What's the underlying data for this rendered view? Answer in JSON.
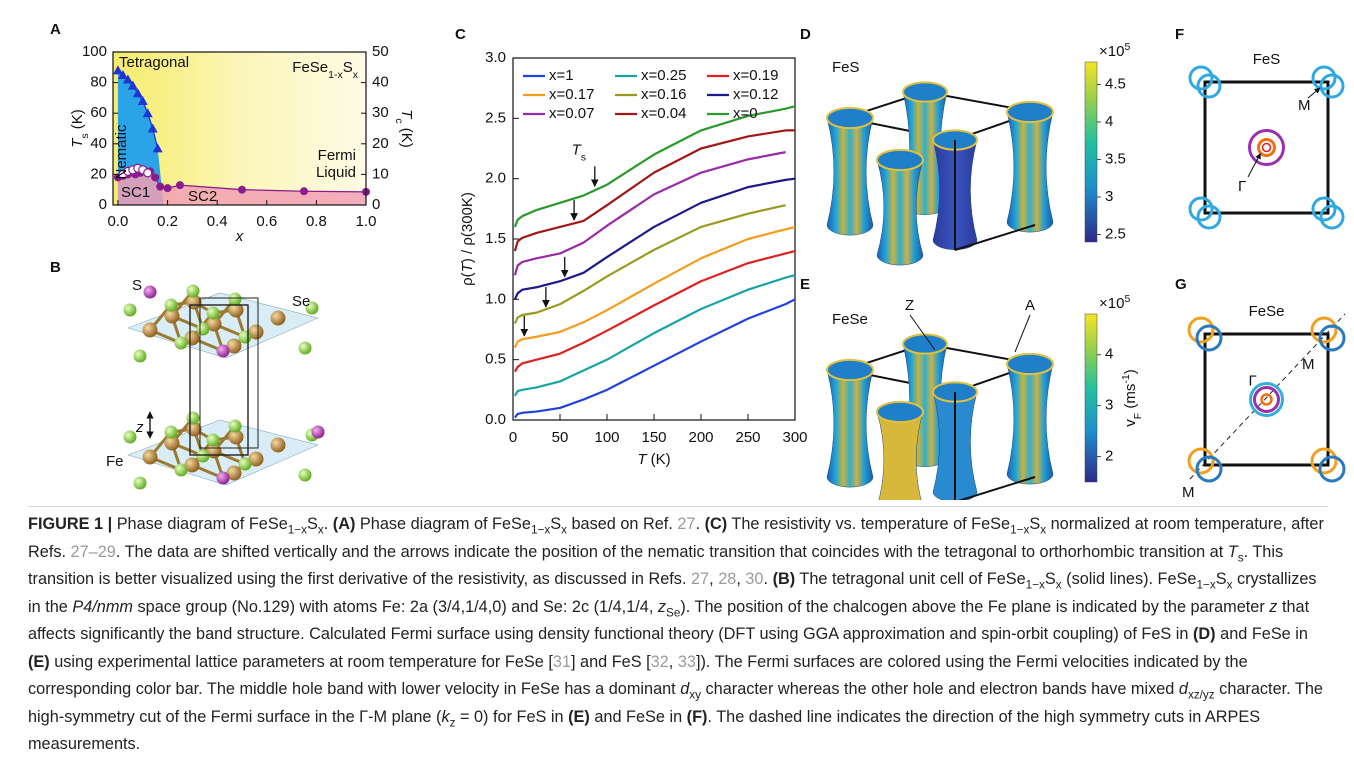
{
  "panel_labels": [
    "A",
    "B",
    "C",
    "D",
    "E",
    "F",
    "G"
  ],
  "chart_data": [
    {
      "type": "scatter",
      "formula": [
        "FeSe",
        {
          "sub": "1-x"
        },
        "S",
        {
          "sub": "x"
        }
      ],
      "labels": {
        "tetragonal": "Tetragonal",
        "nematic": "Nematic",
        "fermi_liquid": [
          "Fermi",
          "Liquid"
        ],
        "sc1": "SC1",
        "sc2": "SC2"
      },
      "xlabel": [
        {
          "i": "x"
        }
      ],
      "ylabel": [
        {
          "i": "T"
        },
        {
          "sub": "s"
        },
        " (K)"
      ],
      "y2label": [
        {
          "i": "T"
        },
        {
          "sub": "c"
        },
        " (K)"
      ],
      "xlim": [
        -0.02,
        1.0
      ],
      "xticks": [
        {
          "value": 0,
          "label": "0.0"
        },
        0.2,
        0.4,
        0.6,
        0.8,
        {
          "value": 1,
          "label": "1.0"
        }
      ],
      "ylim": [
        0,
        100
      ],
      "yticks": [
        0,
        20,
        40,
        60,
        80,
        100
      ],
      "y2lim": [
        0,
        50
      ],
      "y2ticks": [
        0,
        10,
        20,
        30,
        40,
        50
      ],
      "series": [
        {
          "color": "#1e35d6",
          "marker": "triangle",
          "x": [
            0,
            0.02,
            0.04,
            0.06,
            0.08,
            0.1,
            0.12,
            0.14,
            0.16
          ],
          "values": [
            88,
            85,
            82,
            78,
            73,
            68,
            60,
            50,
            37
          ]
        },
        {
          "color": "#8b1c8f",
          "marker": "circle",
          "axis": "y2",
          "x": [
            0,
            0.02,
            0.04,
            0.07,
            0.09,
            0.11,
            0.13,
            0.15,
            0.17,
            0.2,
            0.25,
            0.5,
            0.75,
            1.0
          ],
          "values": [
            9,
            9.5,
            10,
            10,
            10.5,
            11,
            11,
            9,
            6,
            5.5,
            6.5,
            5,
            4.5,
            4.3
          ]
        },
        {
          "color": "#ffffff",
          "marker": "circle",
          "axis": "y2",
          "x": [
            0.02,
            0.04,
            0.06,
            0.08,
            0.1,
            0.12
          ],
          "values": [
            10,
            11,
            11.5,
            12,
            11.5,
            10.5
          ]
        }
      ]
    },
    {
      "type": "line",
      "ylabel": [
        "ρ(",
        {
          "i": "T"
        },
        ") / ρ(300K)"
      ],
      "xlabel": [
        {
          "i": "T"
        },
        " (K)"
      ],
      "annotation": [
        {
          "i": "T"
        },
        {
          "sub": "s"
        }
      ],
      "xlim": [
        0,
        300
      ],
      "xticks": [
        0,
        50,
        100,
        150,
        200,
        250,
        300
      ],
      "ylim": [
        0,
        3
      ],
      "yticks": [
        {
          "value": 0,
          "label": "0.0"
        },
        0.5,
        {
          "value": 1,
          "label": "1.0"
        },
        1.5,
        {
          "value": 2,
          "label": "2.0"
        },
        2.5,
        {
          "value": 3,
          "label": "3.0"
        }
      ],
      "legend": "top",
      "x": [
        2,
        5,
        10,
        25,
        50,
        75,
        100,
        150,
        200,
        250,
        290,
        300
      ],
      "series": [
        {
          "name": "x=1",
          "color": "#2040e0",
          "values": [
            0.02,
            0.05,
            0.06,
            0.07,
            0.1,
            0.17,
            0.25,
            0.45,
            0.65,
            0.84,
            0.96,
            1.0
          ]
        },
        {
          "name": "x=0.25",
          "color": "#1aa3a3",
          "values": [
            0.2,
            0.24,
            0.25,
            0.27,
            0.32,
            0.41,
            0.5,
            0.72,
            0.92,
            1.08,
            1.18,
            1.2
          ]
        },
        {
          "name": "x=0.19",
          "color": "#e02020",
          "values": [
            0.4,
            0.44,
            0.47,
            0.5,
            0.55,
            0.64,
            0.74,
            0.95,
            1.15,
            1.3,
            1.38,
            1.4
          ]
        },
        {
          "name": "x=0.17",
          "color": "#f59b1e",
          "values": [
            0.6,
            0.65,
            0.67,
            0.69,
            0.73,
            0.81,
            0.91,
            1.13,
            1.34,
            1.5,
            1.58,
            1.6
          ]
        },
        {
          "name": "x=0.16",
          "color": "#9a9a20",
          "values": [
            0.8,
            0.85,
            0.87,
            0.89,
            0.96,
            1.07,
            1.19,
            1.41,
            1.6,
            1.71,
            1.78,
            null
          ]
        },
        {
          "name": "x=0.12",
          "color": "#1a1a8a",
          "values": [
            1.0,
            1.05,
            1.08,
            1.1,
            1.15,
            1.22,
            1.35,
            1.6,
            1.8,
            1.93,
            1.99,
            2.0
          ]
        },
        {
          "name": "x=0.07",
          "color": "#9a2aa8",
          "values": [
            1.2,
            1.28,
            1.31,
            1.34,
            1.38,
            1.47,
            1.61,
            1.87,
            2.05,
            2.16,
            2.22,
            null
          ]
        },
        {
          "name": "x=0.04",
          "color": "#a01818",
          "values": [
            1.4,
            1.48,
            1.51,
            1.55,
            1.6,
            1.65,
            1.78,
            2.05,
            2.25,
            2.35,
            2.4,
            2.4
          ]
        },
        {
          "name": "x=0",
          "color": "#2a9a2a",
          "values": [
            1.6,
            1.66,
            1.69,
            1.74,
            1.8,
            1.86,
            1.95,
            2.2,
            2.4,
            2.52,
            2.58,
            2.6
          ]
        }
      ],
      "arrows": {
        "x": [
          12,
          35,
          55,
          65,
          87
        ],
        "y": [
          0.68,
          0.92,
          1.17,
          1.64,
          1.92
        ]
      }
    }
  ],
  "crystal_labels": [
    "S",
    "Se",
    "z",
    "Fe"
  ],
  "fermi_surfaces": [
    {
      "label": "FeS",
      "colorbar": {
        "multiplier": [
          "×10",
          {
            "sup": "5"
          }
        ],
        "lim": [
          2.4,
          4.8
        ],
        "ticks": [
          4.5,
          4,
          3.5,
          3,
          2.5
        ]
      }
    },
    {
      "label": "FeSe",
      "points": [
        "Z",
        "A"
      ],
      "colorbar": {
        "multiplier": [
          "×10",
          {
            "sup": "5"
          }
        ],
        "lim": [
          1.5,
          4.8
        ],
        "ticks": [
          4,
          3,
          2
        ],
        "label": [
          "v",
          {
            "sub": "F"
          },
          " (ms",
          {
            "sup": "-1"
          },
          ")"
        ]
      }
    }
  ],
  "fermi_cuts": [
    {
      "label": "FeS",
      "points": [
        "M",
        "Γ"
      ]
    },
    {
      "label": "FeSe",
      "points": [
        "Γ",
        "M",
        "M"
      ]
    }
  ],
  "caption": [
    {
      "b": "FIGURE 1 |"
    },
    " Phase diagram of FeSe",
    {
      "sub": "1−x"
    },
    "S",
    {
      "sub": "x"
    },
    ". ",
    {
      "b": "(A)"
    },
    " Phase diagram of FeSe",
    {
      "sub": "1−x"
    },
    "S",
    {
      "sub": "x"
    },
    " based on Ref. ",
    {
      "link": "27"
    },
    ". ",
    {
      "b": "(C)"
    },
    " The resistivity vs. temperature of FeSe",
    {
      "sub": "1−x"
    },
    "S",
    {
      "sub": "x"
    },
    " normalized at room temperature, after Refs. ",
    {
      "link": "27–29"
    },
    ". The data are shifted vertically and the arrows indicate the position of the nematic transition that coincides with the tetragonal to orthorhombic transition at ",
    {
      "i": "T"
    },
    {
      "sub": "s"
    },
    ". This transition is better visualized using the first derivative of the resistivity, as discussed in Refs. ",
    {
      "link": "27"
    },
    ", ",
    {
      "link": "28"
    },
    ", ",
    {
      "link": "30"
    },
    ". ",
    {
      "b": "(B)"
    },
    " The tetragonal unit cell of FeSe",
    {
      "sub": "1−x"
    },
    "S",
    {
      "sub": "x"
    },
    " (solid lines). FeSe",
    {
      "sub": "1−x"
    },
    "S",
    {
      "sub": "x"
    },
    " crystallizes in the ",
    {
      "i": "P4/nmm"
    },
    " space group (No.129) with atoms Fe: 2a (3/4,1/4,0) and Se: 2c (1/4,1/4, ",
    {
      "i": "z"
    },
    {
      "sub": "Se"
    },
    "). The position of the chalcogen above the Fe plane is indicated by the parameter ",
    {
      "i": "z"
    },
    " that affects significantly the band structure. Calculated Fermi surface using density functional theory (DFT using GGA approximation and spin-orbit coupling) of FeS in ",
    {
      "b": "(D)"
    },
    " and FeSe in ",
    {
      "b": "(E)"
    },
    " using experimental lattice parameters at room temperature for FeSe [",
    {
      "link": "31"
    },
    "] and FeS [",
    {
      "link": "32"
    },
    ", ",
    {
      "link": "33"
    },
    "]). The Fermi surfaces are colored using the Fermi velocities indicated by the corresponding color bar. The middle hole band with lower velocity in FeSe has a dominant ",
    {
      "i": "d"
    },
    {
      "sub": "xy"
    },
    " character whereas the other hole and electron bands have mixed ",
    {
      "i": "d"
    },
    {
      "sub": "xz/yz"
    },
    " character. The high-symmetry cut of the Fermi surface in the Γ-M plane (",
    {
      "i": "k"
    },
    {
      "sub": "z"
    },
    " = 0) for FeS in ",
    {
      "b": "(E)"
    },
    " and FeSe in ",
    {
      "b": "(F)"
    },
    ". The dashed line indicates the direction of the high symmetry cuts in ARPES measurements."
  ]
}
